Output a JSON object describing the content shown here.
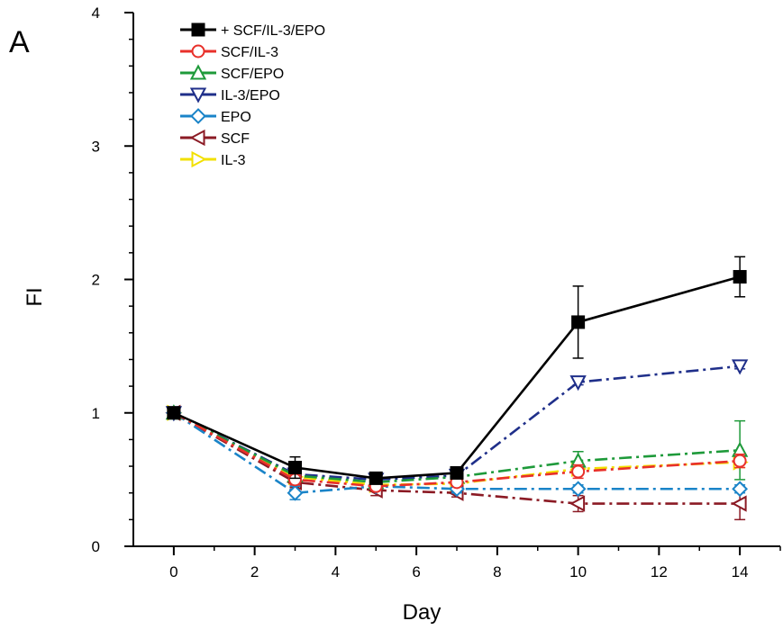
{
  "panel_label": "A",
  "chart_data": {
    "type": "line",
    "title": "",
    "xlabel": "Day",
    "ylabel": "FI",
    "xlim": [
      -1,
      15
    ],
    "ylim": [
      0,
      4
    ],
    "xticks": [
      0,
      2,
      4,
      6,
      8,
      10,
      12,
      14
    ],
    "yticks": [
      0,
      1,
      2,
      3,
      4
    ],
    "grid": false,
    "legend_position": "top-left",
    "series": [
      {
        "name": "+ SCF/IL-3/EPO",
        "color": "#000000",
        "marker": "square-filled",
        "dash": "solid",
        "x": [
          0,
          3,
          5,
          7,
          10,
          14
        ],
        "y": [
          1.0,
          0.59,
          0.51,
          0.55,
          1.68,
          2.02
        ],
        "err": [
          0,
          0.08,
          0.03,
          0.03,
          0.27,
          0.15
        ]
      },
      {
        "name": "SCF/IL-3",
        "color": "#e8302a",
        "marker": "circle-open",
        "dash": "dashdot",
        "x": [
          0,
          3,
          5,
          7,
          10,
          14
        ],
        "y": [
          1.0,
          0.5,
          0.45,
          0.48,
          0.56,
          0.64
        ],
        "err": [
          0,
          0.04,
          0.03,
          0.03,
          0.05,
          0.05
        ]
      },
      {
        "name": "SCF/EPO",
        "color": "#1e9a3a",
        "marker": "triangle-up-open",
        "dash": "dashdot",
        "x": [
          0,
          3,
          5,
          7,
          10,
          14
        ],
        "y": [
          1.0,
          0.53,
          0.48,
          0.52,
          0.64,
          0.72
        ],
        "err": [
          0,
          0.04,
          0.03,
          0.03,
          0.07,
          0.22
        ]
      },
      {
        "name": "IL-3/EPO",
        "color": "#1f2f8a",
        "marker": "triangle-down-open",
        "dash": "dashdot",
        "x": [
          0,
          3,
          5,
          7,
          10,
          14
        ],
        "y": [
          1.0,
          0.54,
          0.5,
          0.53,
          1.23,
          1.35
        ],
        "err": [
          0,
          0.03,
          0.02,
          0.03,
          0.02,
          0.02
        ]
      },
      {
        "name": "EPO",
        "color": "#1a84c8",
        "marker": "diamond-open",
        "dash": "dashdot",
        "x": [
          0,
          3,
          5,
          7,
          10,
          14
        ],
        "y": [
          1.0,
          0.4,
          0.45,
          0.43,
          0.43,
          0.43
        ],
        "err": [
          0,
          0.05,
          0.03,
          0.03,
          0.03,
          0.03
        ]
      },
      {
        "name": "SCF",
        "color": "#8b1a24",
        "marker": "triangle-left-open",
        "dash": "dashdot",
        "x": [
          0,
          3,
          5,
          7,
          10,
          14
        ],
        "y": [
          1.0,
          0.48,
          0.42,
          0.4,
          0.32,
          0.32
        ],
        "err": [
          0,
          0.04,
          0.04,
          0.03,
          0.06,
          0.12
        ]
      },
      {
        "name": "IL-3",
        "color": "#f2e000",
        "marker": "triangle-right-open",
        "dash": "dashdot",
        "x": [
          0,
          3,
          5,
          7,
          10,
          14
        ],
        "y": [
          1.0,
          0.52,
          0.46,
          0.47,
          0.58,
          0.63
        ],
        "err": [
          0,
          0.03,
          0.03,
          0.03,
          0.04,
          0.04
        ]
      }
    ]
  }
}
